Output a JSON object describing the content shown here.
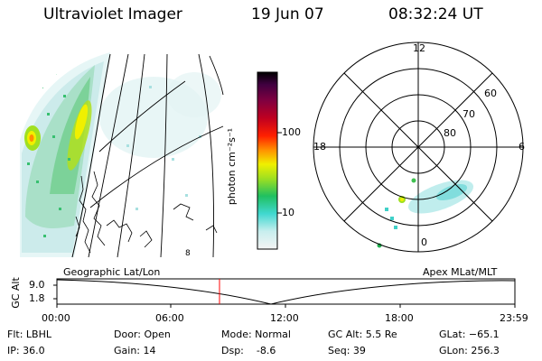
{
  "header": {
    "title": "Ultraviolet Imager",
    "date": "19 Jun 07",
    "time": "08:32:24 UT"
  },
  "colorbar": {
    "unit_label": "photon cm⁻²s⁻¹",
    "tick_high": "100",
    "tick_low": "10",
    "scale": "log"
  },
  "left_panel": {
    "caption": "Geographic Lat/Lon"
  },
  "right_panel": {
    "caption": "Apex MLat/MLT",
    "mlt_top": "12",
    "mlt_left": "18",
    "mlt_right": "6",
    "mlt_bottom": "0",
    "lat_60": "60",
    "lat_70": "70",
    "lat_80": "80"
  },
  "gc_plot": {
    "axis_label": "GC Alt",
    "y_top": "9.0",
    "y_bottom": "1.8",
    "x_ticks": [
      "00:00",
      "06:00",
      "12:00",
      "18:00",
      "23:59"
    ],
    "current_time_fraction": 0.355
  },
  "footer": {
    "flt": "Flt: LBHL",
    "ip": "IP: 36.0",
    "door": "Door: Open",
    "gain": "Gain: 14",
    "mode": "Mode: Normal",
    "dsp": "Dsp:    -8.6",
    "gcalt": "GC Alt: 5.5 Re",
    "seq": "Seq: 39",
    "glat": "GLat: −65.1",
    "glon": "GLon: 256.3"
  },
  "colors": {
    "colorbar_stops": [
      "#f2f2f2",
      "#c0ecec",
      "#40d8d0",
      "#20c060",
      "#a0e020",
      "#f0f000",
      "#ff9000",
      "#ff2000",
      "#c00020",
      "#800040",
      "#400040",
      "#000000"
    ],
    "time_marker": "#ff0000"
  }
}
